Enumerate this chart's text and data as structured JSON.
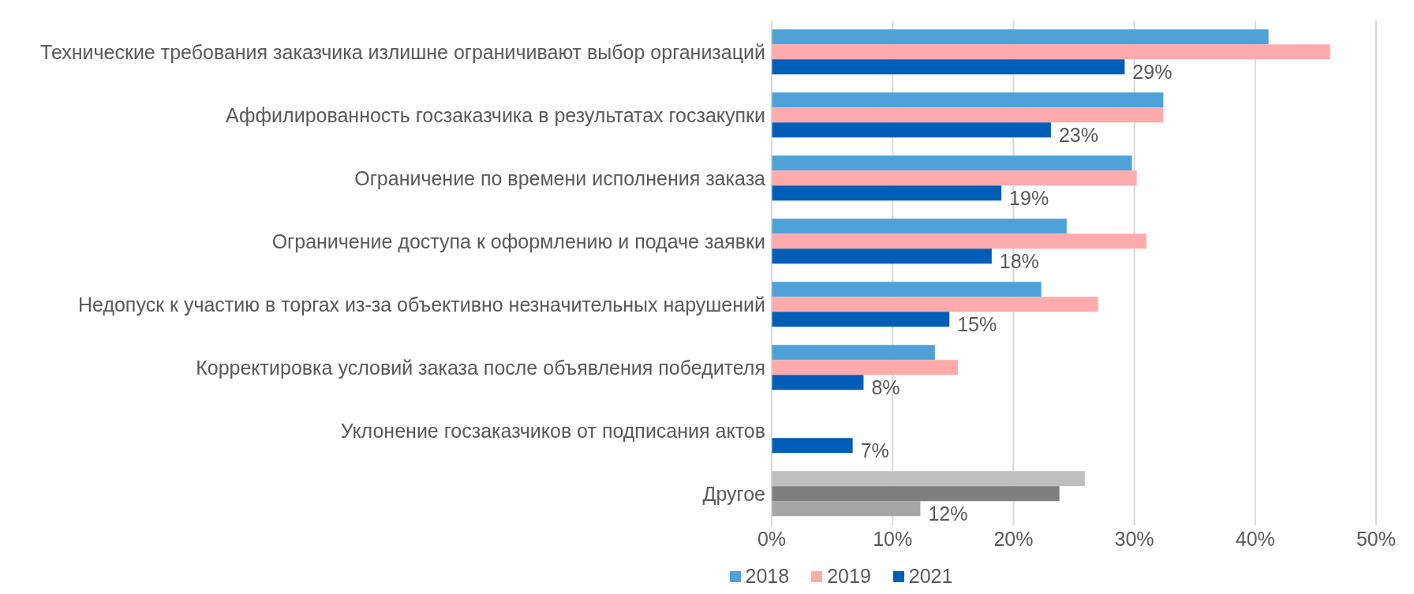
{
  "chart_data": {
    "type": "bar",
    "orientation": "horizontal",
    "categories": [
      "Технические требования заказчика излишне ограничивают выбор организаций",
      "Аффилированность госзаказчика в результатах госзакупки",
      "Ограничение по времени исполнения заказа",
      "Ограничение доступа к оформлению и подаче заявки",
      "Недопуск к участию в торгах из-за объективно незначительных нарушений",
      "Корректировка условий заказа после объявления победителя",
      "Уклонение госзаказчиков от подписания актов",
      "Другое"
    ],
    "series": [
      {
        "name": "2018",
        "color": "#4ea2d8",
        "colors": [
          "#4ea2d8",
          "#4ea2d8",
          "#4ea2d8",
          "#4ea2d8",
          "#4ea2d8",
          "#4ea2d8",
          "#4ea2d8",
          "#bfbfbf"
        ],
        "values": [
          41.1,
          32.4,
          29.8,
          24.4,
          22.3,
          13.5,
          null,
          25.9
        ]
      },
      {
        "name": "2019",
        "color": "#ffabae",
        "colors": [
          "#ffabae",
          "#ffabae",
          "#ffabae",
          "#ffabae",
          "#ffabae",
          "#ffabae",
          "#ffabae",
          "#7f7f7f"
        ],
        "values": [
          46.2,
          32.4,
          30.2,
          31.0,
          27.0,
          15.4,
          null,
          23.8
        ]
      },
      {
        "name": "2021",
        "color": "#005eb8",
        "colors": [
          "#005eb8",
          "#005eb8",
          "#005eb8",
          "#005eb8",
          "#005eb8",
          "#005eb8",
          "#005eb8",
          "#a5a5a5"
        ],
        "values": [
          29.2,
          23.1,
          19.0,
          18.2,
          14.7,
          7.6,
          6.7,
          12.3
        ],
        "value_labels": [
          "29%",
          "23%",
          "19%",
          "18%",
          "15%",
          "8%",
          "7%",
          "12%"
        ]
      }
    ],
    "xlim": [
      0,
      50
    ],
    "xticks": [
      {
        "value": 0,
        "label": "0%"
      },
      {
        "value": 10,
        "label": "10%"
      },
      {
        "value": 20,
        "label": "20%"
      },
      {
        "value": 30,
        "label": "30%"
      },
      {
        "value": 40,
        "label": "40%"
      },
      {
        "value": 50,
        "label": "50%"
      }
    ],
    "grid": "x",
    "legend": "bottom"
  }
}
